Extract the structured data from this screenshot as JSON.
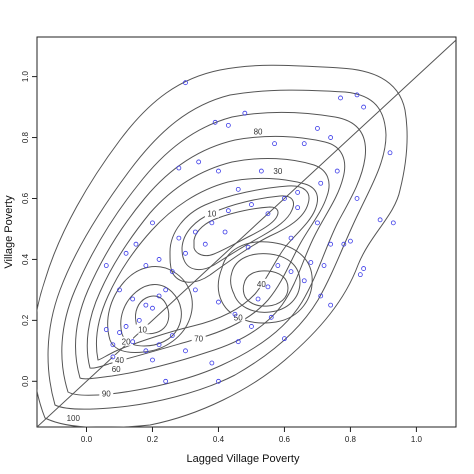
{
  "chart_data": {
    "type": "scatter",
    "title": "",
    "xlabel": "Lagged Village Poverty",
    "ylabel": "Village Poverty",
    "xlim": [
      -0.15,
      1.12
    ],
    "ylim": [
      -0.15,
      1.13
    ],
    "xticks": [
      0.0,
      0.2,
      0.4,
      0.6,
      0.8,
      1.0
    ],
    "yticks": [
      0.0,
      0.2,
      0.4,
      0.6,
      0.8,
      1.0
    ],
    "xtick_labels": [
      "0.0",
      "0.2",
      "0.4",
      "0.6",
      "0.8",
      "1.0"
    ],
    "ytick_labels": [
      "0.0",
      "0.2",
      "0.4",
      "0.6",
      "0.8",
      "1.0"
    ],
    "grid": false,
    "reference_line": {
      "type": "identity",
      "slope": 1,
      "intercept": 0
    },
    "point_color": "#3a3ae8",
    "contour_color": "#555555",
    "points": [
      {
        "x": 0.3,
        "y": 0.98
      },
      {
        "x": 0.39,
        "y": 0.85
      },
      {
        "x": 0.43,
        "y": 0.84
      },
      {
        "x": 0.48,
        "y": 0.88
      },
      {
        "x": 0.77,
        "y": 0.93
      },
      {
        "x": 0.82,
        "y": 0.94
      },
      {
        "x": 0.84,
        "y": 0.9
      },
      {
        "x": 0.92,
        "y": 0.75
      },
      {
        "x": 0.28,
        "y": 0.7
      },
      {
        "x": 0.34,
        "y": 0.72
      },
      {
        "x": 0.4,
        "y": 0.69
      },
      {
        "x": 0.46,
        "y": 0.63
      },
      {
        "x": 0.53,
        "y": 0.69
      },
      {
        "x": 0.57,
        "y": 0.78
      },
      {
        "x": 0.66,
        "y": 0.78
      },
      {
        "x": 0.7,
        "y": 0.83
      },
      {
        "x": 0.74,
        "y": 0.8
      },
      {
        "x": 0.76,
        "y": 0.69
      },
      {
        "x": 0.71,
        "y": 0.65
      },
      {
        "x": 0.64,
        "y": 0.62
      },
      {
        "x": 0.6,
        "y": 0.6
      },
      {
        "x": 0.55,
        "y": 0.55
      },
      {
        "x": 0.5,
        "y": 0.58
      },
      {
        "x": 0.43,
        "y": 0.56
      },
      {
        "x": 0.38,
        "y": 0.52
      },
      {
        "x": 0.33,
        "y": 0.49
      },
      {
        "x": 0.28,
        "y": 0.47
      },
      {
        "x": 0.2,
        "y": 0.52
      },
      {
        "x": 0.15,
        "y": 0.45
      },
      {
        "x": 0.12,
        "y": 0.42
      },
      {
        "x": 0.18,
        "y": 0.38
      },
      {
        "x": 0.22,
        "y": 0.4
      },
      {
        "x": 0.26,
        "y": 0.36
      },
      {
        "x": 0.06,
        "y": 0.38
      },
      {
        "x": 0.1,
        "y": 0.3
      },
      {
        "x": 0.14,
        "y": 0.27
      },
      {
        "x": 0.18,
        "y": 0.25
      },
      {
        "x": 0.22,
        "y": 0.28
      },
      {
        "x": 0.24,
        "y": 0.3
      },
      {
        "x": 0.2,
        "y": 0.24
      },
      {
        "x": 0.16,
        "y": 0.2
      },
      {
        "x": 0.12,
        "y": 0.18
      },
      {
        "x": 0.1,
        "y": 0.16
      },
      {
        "x": 0.08,
        "y": 0.12
      },
      {
        "x": 0.14,
        "y": 0.13
      },
      {
        "x": 0.18,
        "y": 0.1
      },
      {
        "x": 0.22,
        "y": 0.12
      },
      {
        "x": 0.26,
        "y": 0.15
      },
      {
        "x": 0.3,
        "y": 0.1
      },
      {
        "x": 0.2,
        "y": 0.07
      },
      {
        "x": 0.24,
        "y": 0.0
      },
      {
        "x": 0.08,
        "y": 0.08
      },
      {
        "x": 0.06,
        "y": 0.17
      },
      {
        "x": 0.38,
        "y": 0.06
      },
      {
        "x": 0.4,
        "y": 0.0
      },
      {
        "x": 0.33,
        "y": 0.3
      },
      {
        "x": 0.4,
        "y": 0.26
      },
      {
        "x": 0.45,
        "y": 0.22
      },
      {
        "x": 0.52,
        "y": 0.27
      },
      {
        "x": 0.55,
        "y": 0.31
      },
      {
        "x": 0.58,
        "y": 0.38
      },
      {
        "x": 0.62,
        "y": 0.36
      },
      {
        "x": 0.66,
        "y": 0.33
      },
      {
        "x": 0.68,
        "y": 0.39
      },
      {
        "x": 0.72,
        "y": 0.38
      },
      {
        "x": 0.74,
        "y": 0.45
      },
      {
        "x": 0.7,
        "y": 0.52
      },
      {
        "x": 0.78,
        "y": 0.45
      },
      {
        "x": 0.83,
        "y": 0.35
      },
      {
        "x": 0.84,
        "y": 0.37
      },
      {
        "x": 0.71,
        "y": 0.28
      },
      {
        "x": 0.74,
        "y": 0.25
      },
      {
        "x": 0.6,
        "y": 0.14
      },
      {
        "x": 0.56,
        "y": 0.21
      },
      {
        "x": 0.5,
        "y": 0.18
      },
      {
        "x": 0.46,
        "y": 0.13
      },
      {
        "x": 0.49,
        "y": 0.44
      },
      {
        "x": 0.42,
        "y": 0.49
      },
      {
        "x": 0.36,
        "y": 0.45
      },
      {
        "x": 0.3,
        "y": 0.42
      },
      {
        "x": 0.93,
        "y": 0.52
      },
      {
        "x": 0.89,
        "y": 0.53
      },
      {
        "x": 0.62,
        "y": 0.47
      },
      {
        "x": 0.64,
        "y": 0.57
      },
      {
        "x": 0.82,
        "y": 0.6
      },
      {
        "x": 0.8,
        "y": 0.46
      }
    ],
    "contour_labels": [
      {
        "text": "100",
        "x": -0.04,
        "y": -0.12
      },
      {
        "text": "90",
        "x": 0.06,
        "y": -0.04
      },
      {
        "text": "80",
        "x": 0.52,
        "y": 0.82
      },
      {
        "text": "70",
        "x": 0.34,
        "y": 0.14
      },
      {
        "text": "60",
        "x": 0.09,
        "y": 0.04
      },
      {
        "text": "50",
        "x": 0.46,
        "y": 0.21
      },
      {
        "text": "40",
        "x": 0.1,
        "y": 0.07
      },
      {
        "text": "30",
        "x": 0.58,
        "y": 0.69
      },
      {
        "text": "20",
        "x": 0.12,
        "y": 0.13
      },
      {
        "text": "10",
        "x": 0.38,
        "y": 0.55
      },
      {
        "text": "10",
        "x": 0.17,
        "y": 0.17
      },
      {
        "text": "40",
        "x": 0.53,
        "y": 0.32
      }
    ]
  }
}
